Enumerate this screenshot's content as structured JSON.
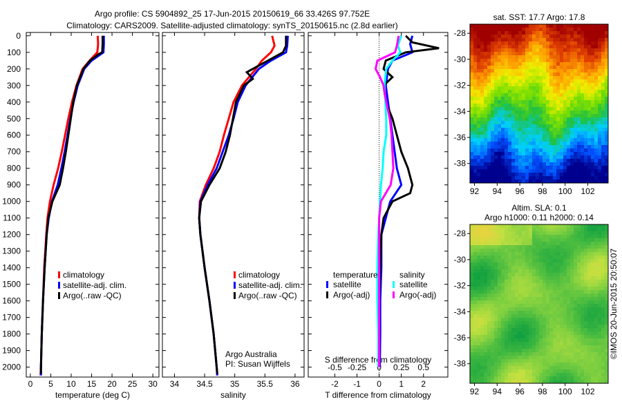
{
  "title_line1": "Argo profile: CS 5904892_25 17-Jun-2015 20150619_66 33.426S 97.752E",
  "title_line2": "Climatology: CARS2009. Satellite-adjusted climatology: synTS_20150615.nc (2.8d earlier)",
  "copyright": "©IMOS 20-Jun-2015 20:50:07",
  "chart_data": [
    {
      "type": "line",
      "name": "temperature",
      "xlabel": "temperature (deg C)",
      "ylabel": "",
      "xlim": [
        -1,
        31.5
      ],
      "ylim": [
        2060,
        -20
      ],
      "xticks": [
        0,
        5,
        10,
        15,
        20,
        25,
        30
      ],
      "yticks": [
        0,
        100,
        200,
        300,
        400,
        500,
        600,
        700,
        800,
        900,
        1000,
        1100,
        1200,
        1300,
        1400,
        1500,
        1600,
        1700,
        1800,
        1900,
        2000
      ],
      "legend": [
        "climatology",
        "satellite-adj. clim.",
        "Argo(..raw -QC)"
      ],
      "series": [
        {
          "name": "climatology",
          "color": "#ff0000",
          "points": [
            [
              0,
              16.5
            ],
            [
              50,
              16.6
            ],
            [
              100,
              16.4
            ],
            [
              150,
              14.5
            ],
            [
              200,
              12.8
            ],
            [
              300,
              11.3
            ],
            [
              400,
              10.2
            ],
            [
              500,
              9.3
            ],
            [
              600,
              8.5
            ],
            [
              700,
              7.7
            ],
            [
              800,
              6.8
            ],
            [
              900,
              5.7
            ],
            [
              1000,
              4.8
            ],
            [
              1100,
              4.2
            ],
            [
              1200,
              3.9
            ],
            [
              1400,
              3.4
            ],
            [
              1600,
              3.1
            ],
            [
              1800,
              2.8
            ],
            [
              2000,
              2.6
            ],
            [
              2050,
              2.5
            ]
          ]
        },
        {
          "name": "satellite-adj. clim.",
          "color": "#0000ff",
          "points": [
            [
              0,
              18.0
            ],
            [
              50,
              18.0
            ],
            [
              100,
              17.9
            ],
            [
              150,
              15.0
            ],
            [
              200,
              13.2
            ],
            [
              300,
              11.6
            ],
            [
              400,
              10.6
            ],
            [
              500,
              9.8
            ],
            [
              600,
              9.1
            ],
            [
              700,
              8.4
            ],
            [
              800,
              7.6
            ],
            [
              900,
              6.7
            ],
            [
              1000,
              5.3
            ],
            [
              1100,
              4.5
            ],
            [
              1200,
              4.0
            ],
            [
              1400,
              3.5
            ],
            [
              1600,
              3.1
            ],
            [
              1800,
              2.8
            ],
            [
              2000,
              2.6
            ],
            [
              2050,
              2.6
            ]
          ]
        },
        {
          "name": "Argo(..raw -QC)",
          "color": "#000000",
          "points": [
            [
              0,
              17.7
            ],
            [
              50,
              17.7
            ],
            [
              100,
              17.6
            ],
            [
              110,
              16.8
            ],
            [
              150,
              14.6
            ],
            [
              200,
              13.0
            ],
            [
              300,
              11.4
            ],
            [
              400,
              10.5
            ],
            [
              500,
              9.9
            ],
            [
              600,
              9.3
            ],
            [
              700,
              8.7
            ],
            [
              800,
              8.0
            ],
            [
              900,
              7.2
            ],
            [
              1000,
              5.4
            ],
            [
              1100,
              4.4
            ],
            [
              1200,
              4.0
            ],
            [
              1400,
              3.5
            ],
            [
              1600,
              3.1
            ],
            [
              1800,
              2.8
            ],
            [
              2000,
              2.6
            ],
            [
              2040,
              2.6
            ]
          ]
        }
      ]
    },
    {
      "type": "line",
      "name": "salinity",
      "xlabel": "salinity",
      "xlim": [
        33.8,
        36.15
      ],
      "ylim": [
        2060,
        -20
      ],
      "xticks": [
        34,
        34.5,
        35,
        35.5,
        36
      ],
      "legend": [
        "climatology",
        "satellite-adj. clim.",
        "Argo(..raw -QC)"
      ],
      "annotation": [
        "Argo Australia",
        "PI: Susan Wijffels"
      ],
      "series": [
        {
          "name": "climatology",
          "color": "#ff0000",
          "points": [
            [
              0,
              35.62
            ],
            [
              60,
              35.66
            ],
            [
              100,
              35.6
            ],
            [
              150,
              35.45
            ],
            [
              200,
              35.35
            ],
            [
              300,
              35.12
            ],
            [
              400,
              34.98
            ],
            [
              500,
              34.9
            ],
            [
              600,
              34.82
            ],
            [
              700,
              34.75
            ],
            [
              800,
              34.65
            ],
            [
              900,
              34.52
            ],
            [
              1000,
              34.42
            ],
            [
              1100,
              34.41
            ],
            [
              1200,
              34.43
            ],
            [
              1400,
              34.5
            ],
            [
              1600,
              34.58
            ],
            [
              1800,
              34.65
            ],
            [
              2000,
              34.7
            ],
            [
              2050,
              34.71
            ]
          ]
        },
        {
          "name": "satellite-adj. clim.",
          "color": "#0000ff",
          "points": [
            [
              0,
              35.88
            ],
            [
              60,
              35.87
            ],
            [
              100,
              35.85
            ],
            [
              150,
              35.6
            ],
            [
              200,
              35.4
            ],
            [
              300,
              35.18
            ],
            [
              400,
              35.05
            ],
            [
              500,
              34.98
            ],
            [
              600,
              34.9
            ],
            [
              700,
              34.8
            ],
            [
              800,
              34.7
            ],
            [
              900,
              34.55
            ],
            [
              1000,
              34.43
            ],
            [
              1100,
              34.41
            ],
            [
              1200,
              34.43
            ],
            [
              1400,
              34.5
            ],
            [
              1600,
              34.58
            ],
            [
              1800,
              34.65
            ],
            [
              2000,
              34.7
            ],
            [
              2050,
              34.71
            ]
          ]
        },
        {
          "name": "Argo(..raw -QC)",
          "color": "#000000",
          "points": [
            [
              0,
              35.85
            ],
            [
              60,
              35.85
            ],
            [
              100,
              35.8
            ],
            [
              150,
              35.55
            ],
            [
              220,
              35.2
            ],
            [
              260,
              35.3
            ],
            [
              300,
              35.15
            ],
            [
              400,
              35.02
            ],
            [
              500,
              34.97
            ],
            [
              600,
              34.92
            ],
            [
              700,
              34.85
            ],
            [
              800,
              34.75
            ],
            [
              900,
              34.58
            ],
            [
              1000,
              34.44
            ],
            [
              1100,
              34.41
            ],
            [
              1200,
              34.43
            ],
            [
              1400,
              34.5
            ],
            [
              1600,
              34.58
            ],
            [
              1800,
              34.65
            ],
            [
              2000,
              34.7
            ],
            [
              2040,
              34.71
            ]
          ]
        }
      ]
    },
    {
      "type": "line",
      "name": "difference",
      "xlabel": "T difference from climatology",
      "x2label": "S difference from climatology",
      "xlim": [
        -3.2,
        3.1
      ],
      "x2lim": [
        -0.8,
        0.775
      ],
      "ylim": [
        2060,
        -20
      ],
      "xticks": [
        -2,
        -1,
        0,
        1,
        2
      ],
      "x2ticks": [
        -0.5,
        -0.25,
        0,
        0.25,
        0.5
      ],
      "x2ticklabels": [
        "-0.5",
        "-0.25",
        "0",
        "0.25",
        "0.5"
      ],
      "legend_groups": [
        {
          "title": "temperature",
          "items": [
            {
              "label": "satellite",
              "color": "#0000ff"
            },
            {
              "label": "Argo(-adj)",
              "color": "#000000"
            }
          ]
        },
        {
          "title": "salinity",
          "items": [
            {
              "label": "satellite",
              "color": "#00ffff"
            },
            {
              "label": "Argo(-adj)",
              "color": "#ff00ff"
            }
          ]
        }
      ],
      "series": [
        {
          "name": "T satellite",
          "axis": "T",
          "color": "#0000ff",
          "points": [
            [
              0,
              1.5
            ],
            [
              50,
              1.4
            ],
            [
              100,
              1.5
            ],
            [
              150,
              0.6
            ],
            [
              200,
              0.4
            ],
            [
              300,
              0.3
            ],
            [
              400,
              0.4
            ],
            [
              500,
              0.5
            ],
            [
              600,
              0.6
            ],
            [
              700,
              0.7
            ],
            [
              800,
              0.8
            ],
            [
              900,
              1.0
            ],
            [
              1000,
              0.5
            ],
            [
              1100,
              0.3
            ],
            [
              1200,
              0.1
            ],
            [
              1400,
              0.1
            ],
            [
              1600,
              0.05
            ],
            [
              1800,
              0.05
            ],
            [
              2000,
              0.03
            ]
          ]
        },
        {
          "name": "T Argo(-adj)",
          "axis": "T",
          "color": "#000000",
          "points": [
            [
              0,
              1.2
            ],
            [
              40,
              1.5
            ],
            [
              75,
              2.7
            ],
            [
              100,
              1.2
            ],
            [
              150,
              0.3
            ],
            [
              200,
              0.2
            ],
            [
              250,
              0.6
            ],
            [
              300,
              0.2
            ],
            [
              400,
              0.3
            ],
            [
              500,
              0.6
            ],
            [
              600,
              0.8
            ],
            [
              700,
              1.0
            ],
            [
              800,
              1.3
            ],
            [
              900,
              1.5
            ],
            [
              950,
              1.4
            ],
            [
              1000,
              0.6
            ],
            [
              1100,
              0.2
            ],
            [
              1200,
              0.1
            ],
            [
              1400,
              0.05
            ],
            [
              1600,
              0.0
            ],
            [
              1800,
              0.0
            ],
            [
              2000,
              0.0
            ]
          ]
        },
        {
          "name": "S satellite",
          "axis": "S",
          "color": "#00ffff",
          "points": [
            [
              0,
              0.25
            ],
            [
              60,
              0.21
            ],
            [
              100,
              0.24
            ],
            [
              150,
              0.15
            ],
            [
              200,
              0.08
            ],
            [
              300,
              0.06
            ],
            [
              400,
              0.07
            ],
            [
              500,
              0.08
            ],
            [
              600,
              0.08
            ],
            [
              700,
              0.05
            ],
            [
              800,
              0.04
            ],
            [
              900,
              0.02
            ],
            [
              1000,
              0.01
            ],
            [
              1200,
              -0.01
            ],
            [
              1400,
              -0.02
            ],
            [
              1600,
              -0.02
            ],
            [
              1800,
              -0.01
            ],
            [
              2000,
              -0.01
            ]
          ]
        },
        {
          "name": "S Argo(-adj)",
          "axis": "S",
          "color": "#ff00ff",
          "points": [
            [
              0,
              0.22
            ],
            [
              60,
              0.2
            ],
            [
              100,
              0.18
            ],
            [
              150,
              -0.02
            ],
            [
              200,
              -0.04
            ],
            [
              250,
              0.01
            ],
            [
              300,
              0.05
            ],
            [
              400,
              0.08
            ],
            [
              500,
              0.12
            ],
            [
              600,
              0.14
            ],
            [
              700,
              0.15
            ],
            [
              800,
              0.16
            ],
            [
              900,
              0.13
            ],
            [
              1000,
              0.02
            ],
            [
              1100,
              0.0
            ],
            [
              1200,
              0.0
            ],
            [
              1400,
              0.0
            ],
            [
              1600,
              0.0
            ],
            [
              1800,
              0.0
            ],
            [
              2000,
              0.0
            ]
          ]
        }
      ]
    },
    {
      "type": "heatmap",
      "name": "sst_map",
      "title": "sat. SST: 17.7 Argo: 17.8",
      "xlim": [
        91.6,
        103.8
      ],
      "ylim": [
        -39.5,
        -27.3
      ],
      "xticks": [
        92,
        94,
        96,
        98,
        100,
        102
      ],
      "yticks": [
        -28,
        -30,
        -32,
        -34,
        -36,
        -38
      ],
      "colormap": [
        "#00008f",
        "#0050ff",
        "#00d0ff",
        "#20c040",
        "#80e000",
        "#f0f000",
        "#ffa000",
        "#e04000",
        "#a00000"
      ]
    },
    {
      "type": "heatmap",
      "name": "sla_map",
      "title": [
        "Altim. SLA: 0.1",
        "Argo h1000: 0.11 h2000: 0.14"
      ],
      "xlim": [
        91.6,
        103.8
      ],
      "ylim": [
        -39.5,
        -27.3
      ],
      "xticks": [
        92,
        94,
        96,
        98,
        100,
        102
      ],
      "yticks": [
        -28,
        -30,
        -32,
        -34,
        -36,
        -38
      ],
      "colormap": [
        "#10a040",
        "#40b840",
        "#80d040",
        "#c0e040",
        "#f0d040"
      ]
    }
  ]
}
